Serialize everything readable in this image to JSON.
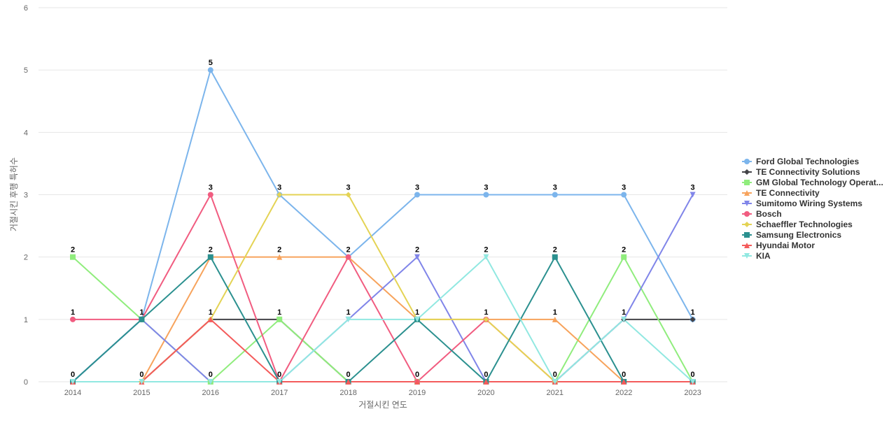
{
  "chart_data": {
    "type": "line",
    "title": "",
    "xlabel": "거절시킨 연도",
    "ylabel": "거절시킨 후행 특허수",
    "ylim": [
      0,
      6
    ],
    "yticks": [
      0,
      1,
      2,
      3,
      4,
      5,
      6
    ],
    "grid": true,
    "legend_position": "right",
    "categories": [
      "2014",
      "2015",
      "2016",
      "2017",
      "2018",
      "2019",
      "2020",
      "2021",
      "2022",
      "2023"
    ],
    "series": [
      {
        "name": "Ford Global Technologies",
        "color": "#7cb5ec",
        "marker": "circle",
        "values": [
          0,
          1,
          5,
          3,
          2,
          3,
          3,
          3,
          3,
          1
        ]
      },
      {
        "name": "TE Connectivity Solutions",
        "color": "#434348",
        "marker": "diamond",
        "values": [
          0,
          0,
          1,
          1,
          0,
          0,
          0,
          0,
          1,
          1
        ]
      },
      {
        "name": "GM Global Technology Operat...",
        "color": "#90ed7d",
        "marker": "square",
        "values": [
          2,
          1,
          0,
          1,
          0,
          0,
          0,
          0,
          2,
          0
        ]
      },
      {
        "name": "TE Connectivity",
        "color": "#f7a35c",
        "marker": "triangle",
        "values": [
          0,
          0,
          2,
          2,
          2,
          1,
          1,
          1,
          0,
          0
        ]
      },
      {
        "name": "Sumitomo Wiring Systems",
        "color": "#8085e9",
        "marker": "triangle-down",
        "values": [
          0,
          1,
          0,
          0,
          1,
          2,
          0,
          0,
          1,
          3
        ]
      },
      {
        "name": "Bosch",
        "color": "#f15c80",
        "marker": "circle",
        "values": [
          1,
          1,
          3,
          0,
          2,
          0,
          1,
          0,
          0,
          0
        ]
      },
      {
        "name": "Schaeffler Technologies",
        "color": "#e4d354",
        "marker": "diamond",
        "values": [
          0,
          0,
          1,
          3,
          3,
          1,
          1,
          0,
          0,
          0
        ]
      },
      {
        "name": "Samsung Electronics",
        "color": "#2b908f",
        "marker": "square",
        "values": [
          0,
          1,
          2,
          0,
          0,
          1,
          0,
          2,
          0,
          0
        ]
      },
      {
        "name": "Hyundai Motor",
        "color": "#f45b5b",
        "marker": "triangle",
        "values": [
          0,
          0,
          1,
          0,
          0,
          0,
          0,
          0,
          0,
          0
        ]
      },
      {
        "name": "KIA",
        "color": "#91e8e1",
        "marker": "triangle-down",
        "values": [
          0,
          0,
          0,
          0,
          1,
          1,
          2,
          0,
          1,
          0
        ]
      }
    ],
    "data_labels": [
      {
        "category": "2014",
        "upper": "2",
        "middle": "1",
        "lower": "0"
      },
      {
        "category": "2015",
        "upper": "",
        "middle": "1",
        "lower": "0"
      },
      {
        "category": "2016",
        "top": "5",
        "upper2": "3",
        "upper": "2",
        "middle": "1",
        "lower": "0"
      },
      {
        "category": "2017",
        "upper2": "3",
        "upper": "2",
        "middle": "1",
        "lower": "0"
      },
      {
        "category": "2018",
        "upper2": "3",
        "upper": "2",
        "middle": "1",
        "lower": "0"
      },
      {
        "category": "2019",
        "upper2": "3",
        "upper": "2",
        "middle": "1",
        "lower": "0"
      },
      {
        "category": "2020",
        "upper2": "3",
        "upper": "2",
        "middle": "1",
        "lower": "0"
      },
      {
        "category": "2021",
        "upper2": "3",
        "upper": "2",
        "middle": "1",
        "lower": "0"
      },
      {
        "category": "2022",
        "upper2": "3",
        "upper": "2",
        "middle": "1",
        "lower": "0"
      },
      {
        "category": "2023",
        "upper2": "3",
        "middle": "1",
        "lower": "0"
      }
    ]
  }
}
